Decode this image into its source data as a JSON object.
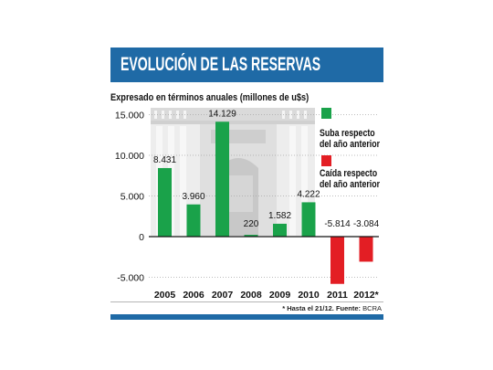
{
  "colors": {
    "header": "#1f6aa6"
  },
  "footnote": {
    "note": "* Hasta el 21/12. Fuente:",
    "source": "BCRA"
  },
  "chart_data": {
    "type": "bar",
    "title": "EVOLUCIÓN DE LAS RESERVAS",
    "subtitle": "Expresado en términos anuales (millones de u$s)",
    "categories": [
      "2005",
      "2006",
      "2007",
      "2008",
      "2009",
      "2010",
      "2011",
      "2012*"
    ],
    "values": [
      8431,
      3960,
      14129,
      220,
      1582,
      4222,
      -5814,
      -3084
    ],
    "data_labels": [
      "8.431",
      "3.960",
      "14.129",
      "220",
      "1.582",
      "4.222",
      "-5.814",
      "-3.084"
    ],
    "yticks": [
      15000,
      10000,
      5000,
      0,
      -5000
    ],
    "ytick_labels": [
      "15.000",
      "10.000",
      "5.000",
      "0",
      "-5.000"
    ],
    "ylim": [
      -6000,
      15000
    ],
    "grid": true,
    "legend_position": "right",
    "legend": [
      {
        "lines": [
          "Suba respecto",
          "del año anterior"
        ],
        "color": "#1aa24a"
      },
      {
        "lines": [
          "Caída respecto",
          "del año anterior"
        ],
        "color": "#e31e24"
      }
    ]
  }
}
